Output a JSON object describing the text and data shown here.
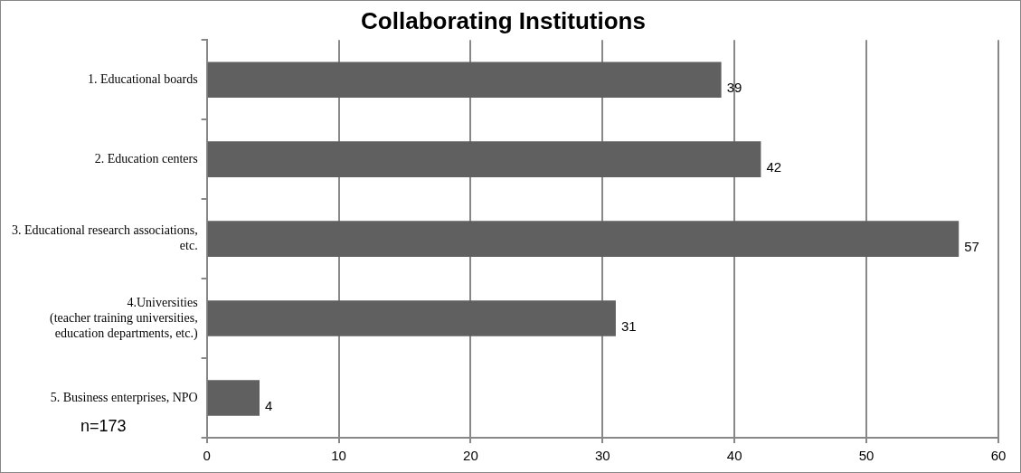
{
  "chart_data": {
    "type": "bar",
    "orientation": "horizontal",
    "title": "Collaborating Institutions",
    "categories": [
      "1. Educational boards",
      "2. Education centers",
      "3. Educational research associations,\netc.",
      "4.Universities\n(teacher training universities,\neducation departments, etc.)",
      "5. Business enterprises, NPO"
    ],
    "values": [
      39,
      42,
      57,
      31,
      4
    ],
    "color": "#606060",
    "xlim": [
      0,
      60
    ],
    "xticks": [
      0,
      10,
      20,
      30,
      40,
      50,
      60
    ],
    "grid": "x",
    "data_labels": true,
    "legend": false,
    "annotations": [
      "n=173"
    ]
  }
}
